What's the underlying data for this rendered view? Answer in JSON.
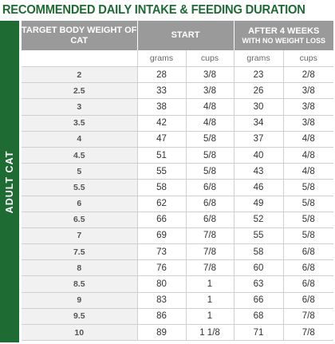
{
  "title": "RECOMMENDED DAILY INTAKE & FEEDING DURATION",
  "side_label": "ADULT CAT",
  "header": {
    "col1": "TARGET BODY WEIGHT OF CAT",
    "start": "START",
    "after_main": "AFTER 4 WEEKS",
    "after_sub": "WITH NO WEIGHT LOSS"
  },
  "units": [
    "grams",
    "cups",
    "grams",
    "cups"
  ],
  "rows": [
    {
      "weight": "2",
      "start_grams": "28",
      "start_cups": "3/8",
      "after_grams": "23",
      "after_cups": "2/8"
    },
    {
      "weight": "2.5",
      "start_grams": "33",
      "start_cups": "3/8",
      "after_grams": "26",
      "after_cups": "3/8"
    },
    {
      "weight": "3",
      "start_grams": "38",
      "start_cups": "4/8",
      "after_grams": "30",
      "after_cups": "3/8"
    },
    {
      "weight": "3.5",
      "start_grams": "42",
      "start_cups": "4/8",
      "after_grams": "34",
      "after_cups": "3/8"
    },
    {
      "weight": "4",
      "start_grams": "47",
      "start_cups": "5/8",
      "after_grams": "37",
      "after_cups": "4/8"
    },
    {
      "weight": "4.5",
      "start_grams": "51",
      "start_cups": "5/8",
      "after_grams": "40",
      "after_cups": "4/8"
    },
    {
      "weight": "5",
      "start_grams": "55",
      "start_cups": "5/8",
      "after_grams": "43",
      "after_cups": "4/8"
    },
    {
      "weight": "5.5",
      "start_grams": "58",
      "start_cups": "6/8",
      "after_grams": "46",
      "after_cups": "5/8"
    },
    {
      "weight": "6",
      "start_grams": "62",
      "start_cups": "6/8",
      "after_grams": "49",
      "after_cups": "5/8"
    },
    {
      "weight": "6.5",
      "start_grams": "66",
      "start_cups": "6/8",
      "after_grams": "52",
      "after_cups": "5/8"
    },
    {
      "weight": "7",
      "start_grams": "69",
      "start_cups": "7/8",
      "after_grams": "55",
      "after_cups": "5/8"
    },
    {
      "weight": "7.5",
      "start_grams": "73",
      "start_cups": "7/8",
      "after_grams": "58",
      "after_cups": "6/8"
    },
    {
      "weight": "8",
      "start_grams": "76",
      "start_cups": "7/8",
      "after_grams": "60",
      "after_cups": "6/8"
    },
    {
      "weight": "8.5",
      "start_grams": "80",
      "start_cups": "1",
      "after_grams": "63",
      "after_cups": "6/8"
    },
    {
      "weight": "9",
      "start_grams": "83",
      "start_cups": "1",
      "after_grams": "66",
      "after_cups": "6/8"
    },
    {
      "weight": "9.5",
      "start_grams": "86",
      "start_cups": "1",
      "after_grams": "68",
      "after_cups": "7/8"
    },
    {
      "weight": "10",
      "start_grams": "89",
      "start_cups": "1 1/8",
      "after_grams": "71",
      "after_cups": "7/8"
    }
  ],
  "colors": {
    "brand_green": "#1f6b34",
    "header_gray": "#9a9a9a",
    "weight_cell_bg": "#f1f1f1"
  }
}
